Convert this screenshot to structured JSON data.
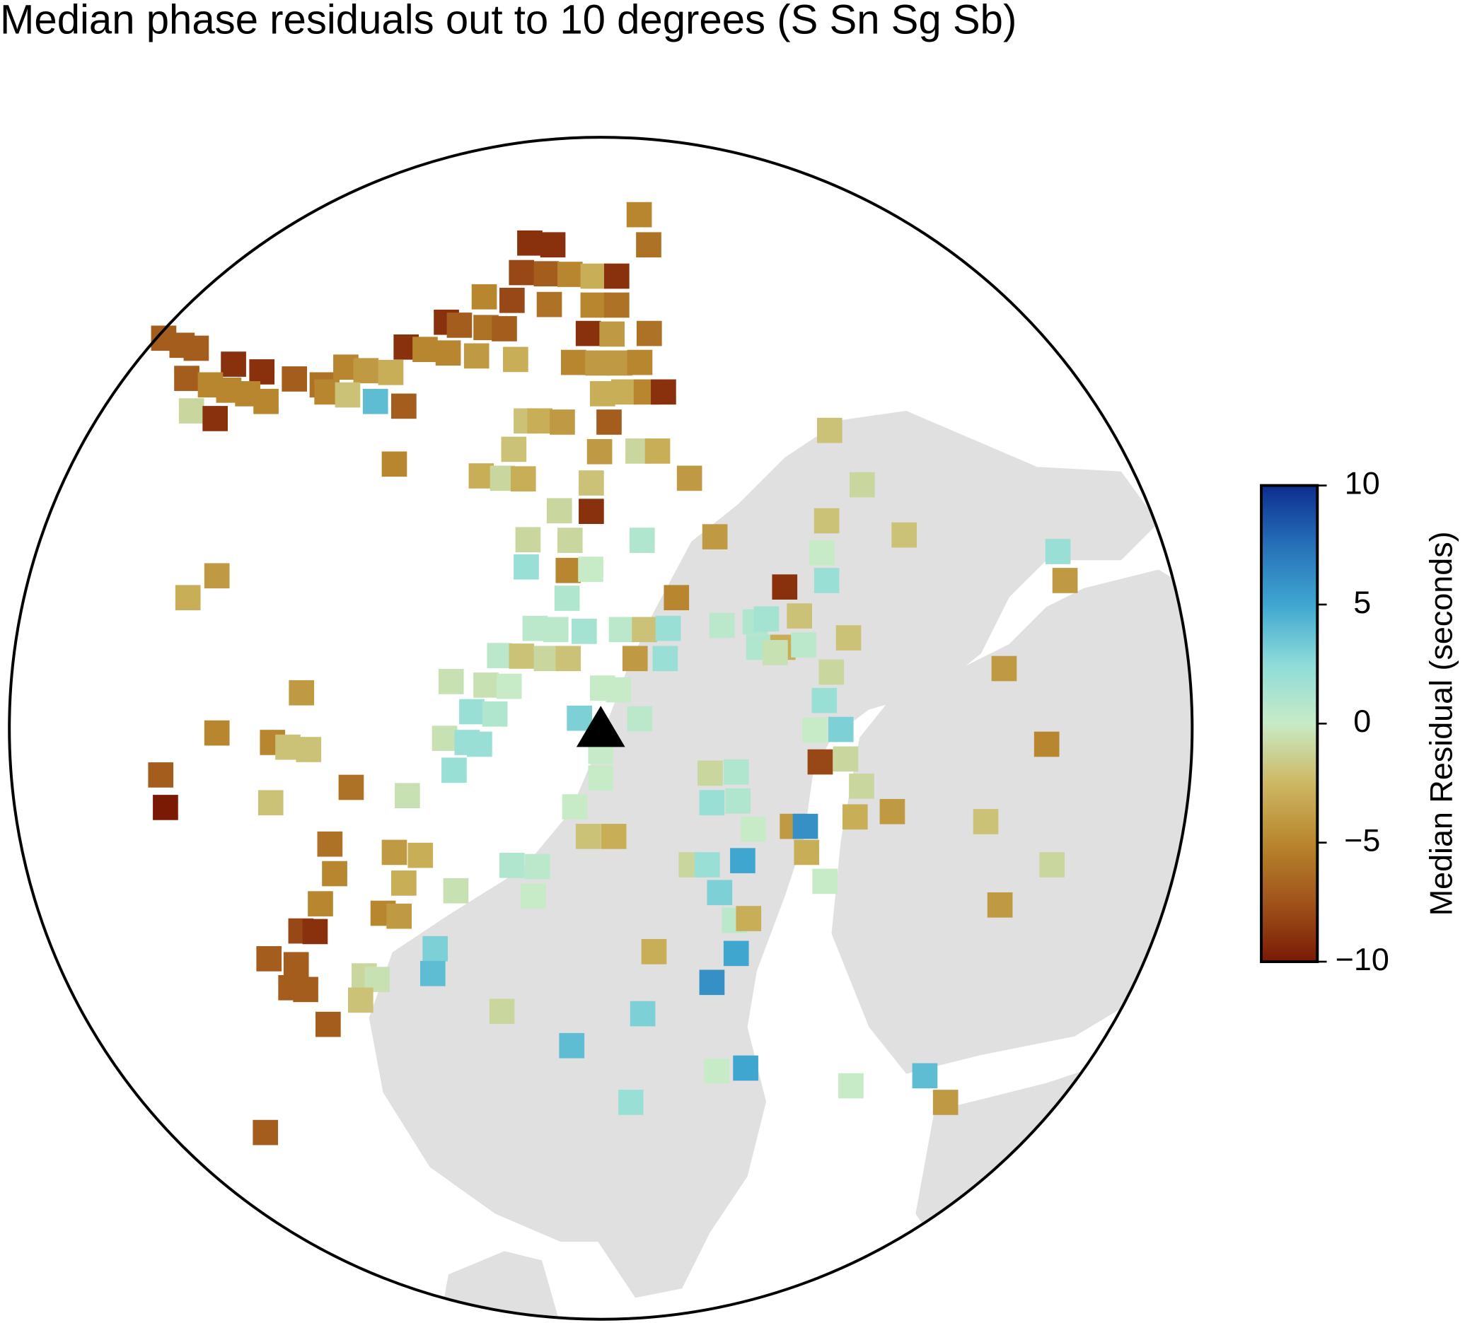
{
  "chart_data": {
    "type": "scatter-map",
    "title": "Median phase residuals out to 10 degrees (S Sn Sg Sb)",
    "xlim": [
      -10,
      10
    ],
    "ylim": [
      -10,
      10
    ],
    "x": [
      0.65,
      0.81,
      -1.2,
      -0.81,
      -1.34,
      -0.92,
      -0.52,
      -0.13,
      0.27,
      -1.97,
      -1.5,
      -0.87,
      -0.13,
      0.27,
      -2.61,
      -2.39,
      -1.94,
      -1.63,
      -0.21,
      0.19,
      0.82,
      -3.29,
      -2.97,
      -2.58,
      -2.1,
      -1.44,
      -0.46,
      -0.05,
      0.32,
      0.66,
      -7.39,
      -7.08,
      -6.84,
      -6.21,
      -5.73,
      -5.18,
      -4.71,
      -4.31,
      -3.97,
      -3.55,
      -7.0,
      -6.6,
      -6.29,
      -5.97,
      -5.66,
      -4.63,
      -4.28,
      -3.81,
      -3.33,
      -6.92,
      -6.52,
      0.03,
      0.39,
      0.77,
      1.06,
      -1.26,
      -1.03,
      -0.65,
      0.14,
      -1.47,
      -0.02,
      0.63,
      0.96,
      -3.49,
      -2.02,
      -1.66,
      -1.31,
      -0.16,
      1.5,
      -0.7,
      -0.16,
      3.87,
      4.42,
      3.82,
      1.93,
      5.13,
      7.73,
      7.85,
      3.74,
      3.82,
      3.11,
      -1.23,
      -0.52,
      0.7,
      -1.26,
      -0.55,
      -0.17,
      -0.57,
      -6.49,
      -6.98,
      1.28,
      -1.11,
      -0.76,
      -0.28,
      0.35,
      0.74,
      1.14,
      2.05,
      2.61,
      2.8,
      3.36,
      -1.71,
      -1.34,
      -0.92,
      -0.55,
      0.58,
      1.09,
      2.67,
      3.08,
      3.43,
      4.19,
      -2.53,
      -1.94,
      -1.55,
      0.03,
      0.3,
      2.95,
      3.9,
      6.82,
      -2.18,
      -1.79,
      -0.36,
      0.66,
      3.78,
      -5.06,
      -5.55,
      -5.29,
      -4.94,
      -6.49,
      -2.64,
      -2.26,
      -2.05,
      4.06,
      3.62,
      7.54,
      0,
      -7.44,
      -7.36,
      -4.22,
      -5.58,
      -2.48,
      -3.27,
      3.71,
      4.14,
      4.41,
      0,
      1.85,
      2.29,
      1.88,
      2.32,
      -0.44,
      2.58,
      3.24,
      3.46,
      4.3,
      4.93,
      6.51,
      -0.21,
      0.22,
      -4.58,
      -3.49,
      -3.05,
      7.63,
      -4.5,
      -1.5,
      -1.07,
      1.53,
      1.8,
      2.4,
      3.48,
      -3.33,
      -2.45,
      3.79,
      -4.74,
      -1.14,
      2.01,
      6.75,
      -3.68,
      -3.41,
      -5.07,
      -4.83,
      2.26,
      2.5,
      0.9,
      -5.61,
      -5.15,
      -2.8,
      2.29,
      -4.0,
      -3.78,
      -5.24,
      -4.99,
      -2.84,
      1.88,
      -4.06,
      -4.61,
      -1.67,
      0.71,
      -0.49,
      1.96,
      2.45,
      4.23,
      5.48,
      0.51,
      5.83,
      -5.67
    ],
    "y": [
      8.69,
      8.18,
      8.21,
      8.18,
      7.71,
      7.69,
      7.68,
      7.65,
      7.65,
      7.3,
      7.24,
      7.17,
      7.16,
      7.16,
      6.87,
      6.82,
      6.78,
      6.76,
      6.68,
      6.67,
      6.68,
      6.45,
      6.41,
      6.35,
      6.3,
      6.24,
      6.19,
      6.18,
      6.18,
      6.19,
      6.6,
      6.48,
      6.43,
      6.16,
      6.03,
      5.91,
      5.81,
      6.11,
      6.05,
      6.02,
      5.92,
      5.81,
      5.72,
      5.66,
      5.53,
      5.69,
      5.64,
      5.53,
      5.45,
      5.37,
      5.24,
      5.66,
      5.69,
      5.69,
      5.69,
      5.2,
      5.2,
      5.18,
      5.18,
      4.72,
      4.68,
      4.69,
      4.69,
      4.47,
      4.27,
      4.23,
      4.22,
      4.15,
      4.23,
      3.68,
      3.67,
      5.04,
      4.12,
      3.51,
      3.24,
      3.27,
      2.99,
      2.5,
      2.97,
      2.5,
      2.39,
      3.19,
      3.18,
      3.18,
      2.73,
      2.67,
      2.69,
      2.2,
      2.58,
      2.21,
      2.21,
      1.69,
      1.67,
      1.64,
      1.67,
      1.67,
      1.69,
      1.74,
      1.8,
      1.85,
      1.9,
      1.23,
      1.22,
      1.18,
      1.18,
      1.18,
      1.18,
      1.37,
      1.37,
      1.41,
      1.53,
      0.79,
      0.73,
      0.71,
      0.68,
      0.65,
      1.28,
      0.95,
      1.01,
      0.28,
      0.24,
      0.17,
      0.16,
      0.47,
      0.6,
      -0.24,
      -0.32,
      -0.36,
      -0.08,
      -0.17,
      -0.24,
      -0.27,
      -0.02,
      -0.03,
      -0.27,
      -0.39,
      -0.79,
      -1.34,
      -1.0,
      -1.26,
      -0.71,
      -1.14,
      -0.57,
      -0.52,
      -0.98,
      -0.84,
      -0.76,
      -0.74,
      -1.26,
      -1.23,
      -1.33,
      -1.71,
      -1.66,
      -1.66,
      -1.5,
      -1.41,
      -1.58,
      -1.83,
      -1.83,
      -1.96,
      -2.1,
      -2.15,
      -2.31,
      -2.46,
      -2.32,
      -2.34,
      -2.31,
      -2.31,
      -2.24,
      -2.1,
      -2.62,
      -2.75,
      -2.59,
      -2.97,
      -2.84,
      -2.78,
      -2.99,
      -3.13,
      -3.18,
      -3.43,
      -3.44,
      -3.25,
      -3.22,
      -3.78,
      -3.9,
      -4.0,
      -3.73,
      -3.81,
      -4.19,
      -4.25,
      -4.39,
      -4.42,
      -4.15,
      -4.3,
      -4.6,
      -5.01,
      -4.79,
      -4.83,
      -5.37,
      -5.8,
      -5.75,
      -6.05,
      -5.88,
      -6.33,
      -6.33,
      -6.84
    ],
    "values": [
      -5,
      -6,
      -9,
      -9,
      -8,
      -7,
      -5,
      -3,
      -9,
      -5,
      -8,
      -6,
      -5,
      -6,
      -9,
      -7,
      -6,
      -7,
      -9,
      -4,
      -6,
      -9,
      -5,
      -5,
      -4,
      -3,
      -5,
      -4,
      -4,
      -5,
      -7,
      -7,
      -7,
      -9,
      -9,
      -7,
      -6,
      -5,
      -4,
      -3,
      -7,
      -5,
      -5,
      -5,
      -5,
      -5,
      -2,
      4,
      -7,
      -1,
      -9,
      -3,
      -3,
      -5,
      -9,
      -2,
      -3,
      -4,
      -7,
      -2,
      -4,
      -1,
      -3,
      -5,
      -3,
      -1,
      -3,
      -2,
      -4,
      -1,
      -9,
      -2,
      -1,
      -2,
      -4,
      -2,
      2,
      -4,
      0,
      2,
      -9,
      -1,
      -1,
      1,
      2,
      -5,
      0,
      1,
      -4,
      -3,
      -5,
      0.5,
      0.5,
      1.5,
      0.5,
      -2,
      2,
      0.5,
      1,
      1.5,
      -2,
      0.5,
      -2,
      -1,
      -2,
      -4,
      2,
      1,
      -3,
      0.5,
      -2,
      -0.5,
      -0.5,
      0,
      0,
      0,
      -0.5,
      -1,
      -4,
      2,
      1,
      3,
      0.5,
      2,
      -4,
      -5,
      -2,
      -2,
      -5,
      -0.5,
      2,
      2,
      3,
      0,
      -5,
      0,
      -7,
      -10,
      -6,
      -2,
      2,
      -0.5,
      -8,
      -1,
      -1,
      0,
      -1,
      1,
      2,
      1,
      0,
      0,
      -4,
      6,
      -3,
      -4,
      -2,
      -2,
      -3,
      -6,
      -4,
      -3,
      -1,
      -5,
      1,
      0.5,
      -1,
      2,
      5,
      -3,
      -3,
      -0.5,
      0,
      -5,
      0,
      3,
      -4,
      -5,
      -4,
      -8,
      -9,
      0.5,
      -3,
      -3,
      -7,
      -7,
      3,
      5,
      -1,
      -0.5,
      -7,
      -7,
      4,
      6,
      -2,
      -7,
      -1,
      3,
      4,
      0,
      5,
      0,
      4,
      2,
      -4,
      -7
    ],
    "station": {
      "x": 0,
      "y": 0
    },
    "colorbar": {
      "label": "Median Residual (seconds)",
      "lim": [
        -10,
        10
      ],
      "ticks": [
        {
          "value": -10,
          "label": "−10"
        },
        {
          "value": -5,
          "label": "−5"
        },
        0,
        5,
        10
      ],
      "colors": [
        "#7a1a04",
        "#a0531a",
        "#b8862e",
        "#cdb863",
        "#c7ebc7",
        "#8ddcd8",
        "#3fa6d0",
        "#2670b8",
        "#0c2e8f"
      ]
    }
  }
}
